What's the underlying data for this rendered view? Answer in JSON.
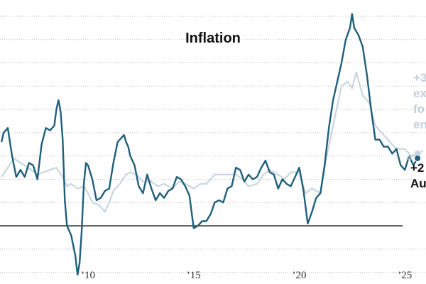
{
  "chart_data": {
    "type": "line",
    "title": "Inflation",
    "x_ticks": [
      "’10",
      "’15",
      "’20",
      "’25"
    ],
    "x_tick_values": [
      2010,
      2015,
      2020,
      2025
    ],
    "xlim": [
      2005.83,
      2026.0
    ],
    "ylim": [
      -2.5,
      9.7
    ],
    "grid": true,
    "zero_line": true,
    "series": [
      {
        "color": "#1f5f7a",
        "x": [
          2005.9,
          2006.0,
          2006.2,
          2006.4,
          2006.6,
          2006.8,
          2007.0,
          2007.2,
          2007.4,
          2007.6,
          2007.8,
          2008.0,
          2008.2,
          2008.4,
          2008.5,
          2008.6,
          2008.7,
          2008.8,
          2008.9,
          2009.0,
          2009.2,
          2009.4,
          2009.5,
          2009.6,
          2009.7,
          2009.8,
          2009.9,
          2010.0,
          2010.2,
          2010.4,
          2010.6,
          2010.8,
          2011.0,
          2011.2,
          2011.4,
          2011.6,
          2011.7,
          2011.8,
          2011.9,
          2012.0,
          2012.2,
          2012.4,
          2012.6,
          2012.8,
          2013.0,
          2013.2,
          2013.4,
          2013.6,
          2013.8,
          2014.0,
          2014.2,
          2014.4,
          2014.6,
          2014.8,
          2015.0,
          2015.2,
          2015.4,
          2015.6,
          2015.8,
          2016.0,
          2016.2,
          2016.4,
          2016.6,
          2016.8,
          2017.0,
          2017.2,
          2017.4,
          2017.6,
          2017.8,
          2018.0,
          2018.2,
          2018.4,
          2018.6,
          2018.8,
          2019.0,
          2019.2,
          2019.4,
          2019.6,
          2019.8,
          2020.0,
          2020.2,
          2020.4,
          2020.6,
          2020.8,
          2021.0,
          2021.2,
          2021.4,
          2021.6,
          2021.8,
          2022.0,
          2022.2,
          2022.4,
          2022.5,
          2022.6,
          2022.8,
          2023.0,
          2023.2,
          2023.4,
          2023.6,
          2023.8,
          2024.0,
          2024.2,
          2024.4,
          2024.6,
          2024.8,
          2025.0,
          2025.2,
          2025.4,
          2025.6
        ],
        "values": [
          3.6,
          4.0,
          4.2,
          3.0,
          2.1,
          2.4,
          2.1,
          2.7,
          2.6,
          2.0,
          3.5,
          4.2,
          4.1,
          4.3,
          5.0,
          5.4,
          4.9,
          3.7,
          1.1,
          0.0,
          -0.4,
          -1.3,
          -2.1,
          -1.6,
          -0.2,
          1.8,
          2.7,
          2.6,
          2.0,
          1.1,
          1.2,
          1.5,
          1.6,
          2.7,
          3.6,
          3.8,
          3.9,
          3.6,
          3.4,
          3.0,
          2.6,
          1.7,
          1.4,
          2.2,
          1.6,
          1.1,
          1.4,
          1.2,
          1.5,
          1.6,
          2.1,
          2.0,
          1.7,
          1.3,
          -0.1,
          0.0,
          0.2,
          0.2,
          0.5,
          1.0,
          1.1,
          1.0,
          1.6,
          1.7,
          2.5,
          2.4,
          1.9,
          2.2,
          2.0,
          2.1,
          2.5,
          2.8,
          2.3,
          2.2,
          1.6,
          2.0,
          1.8,
          1.7,
          2.1,
          2.5,
          1.5,
          0.1,
          0.6,
          1.2,
          1.4,
          2.6,
          4.2,
          5.4,
          6.2,
          7.0,
          8.0,
          8.5,
          9.1,
          8.5,
          8.2,
          7.7,
          6.5,
          5.0,
          3.7,
          3.7,
          3.4,
          3.4,
          3.1,
          3.3,
          2.6,
          2.4,
          3.0,
          2.6,
          2.9
        ]
      },
      {
        "color": "#c9d6df",
        "x": [
          2005.9,
          2006.2,
          2006.5,
          2006.8,
          2007.0,
          2007.3,
          2007.6,
          2007.9,
          2008.2,
          2008.5,
          2008.8,
          2009.0,
          2009.2,
          2009.5,
          2009.8,
          2010.0,
          2010.2,
          2010.5,
          2010.8,
          2011.0,
          2011.2,
          2011.5,
          2011.8,
          2012.0,
          2012.3,
          2012.6,
          2013.0,
          2013.3,
          2013.6,
          2014.0,
          2014.3,
          2014.6,
          2015.0,
          2015.3,
          2015.6,
          2016.0,
          2016.3,
          2016.6,
          2017.0,
          2017.3,
          2017.6,
          2018.0,
          2018.3,
          2018.6,
          2019.0,
          2019.3,
          2019.6,
          2020.0,
          2020.3,
          2020.6,
          2021.0,
          2021.3,
          2021.6,
          2022.0,
          2022.3,
          2022.5,
          2022.7,
          2023.0,
          2023.3,
          2023.6,
          2024.0,
          2024.3,
          2024.6,
          2025.0,
          2025.3,
          2025.6
        ],
        "values": [
          2.1,
          2.5,
          2.9,
          2.7,
          2.6,
          2.4,
          2.2,
          2.3,
          2.4,
          2.5,
          2.1,
          1.7,
          1.8,
          1.6,
          1.7,
          1.4,
          1.0,
          0.9,
          0.6,
          1.0,
          1.5,
          1.8,
          2.2,
          2.3,
          2.2,
          1.9,
          1.9,
          1.7,
          1.8,
          1.6,
          1.9,
          1.8,
          1.6,
          1.8,
          1.8,
          2.2,
          2.2,
          2.2,
          2.2,
          2.0,
          1.7,
          1.8,
          2.2,
          2.4,
          2.2,
          2.0,
          2.3,
          2.3,
          1.4,
          1.6,
          1.4,
          3.0,
          4.3,
          6.0,
          6.2,
          5.9,
          6.6,
          5.6,
          5.3,
          4.3,
          3.9,
          3.6,
          3.3,
          3.3,
          3.0,
          3.1
        ]
      }
    ],
    "annotations": [
      {
        "id": "core",
        "lines": [
          "+3",
          "ex",
          "fo",
          "en"
        ],
        "color": "#c4d0da"
      },
      {
        "id": "headline",
        "lines": [
          "+2",
          "Au"
        ],
        "color": "#111111"
      }
    ]
  }
}
